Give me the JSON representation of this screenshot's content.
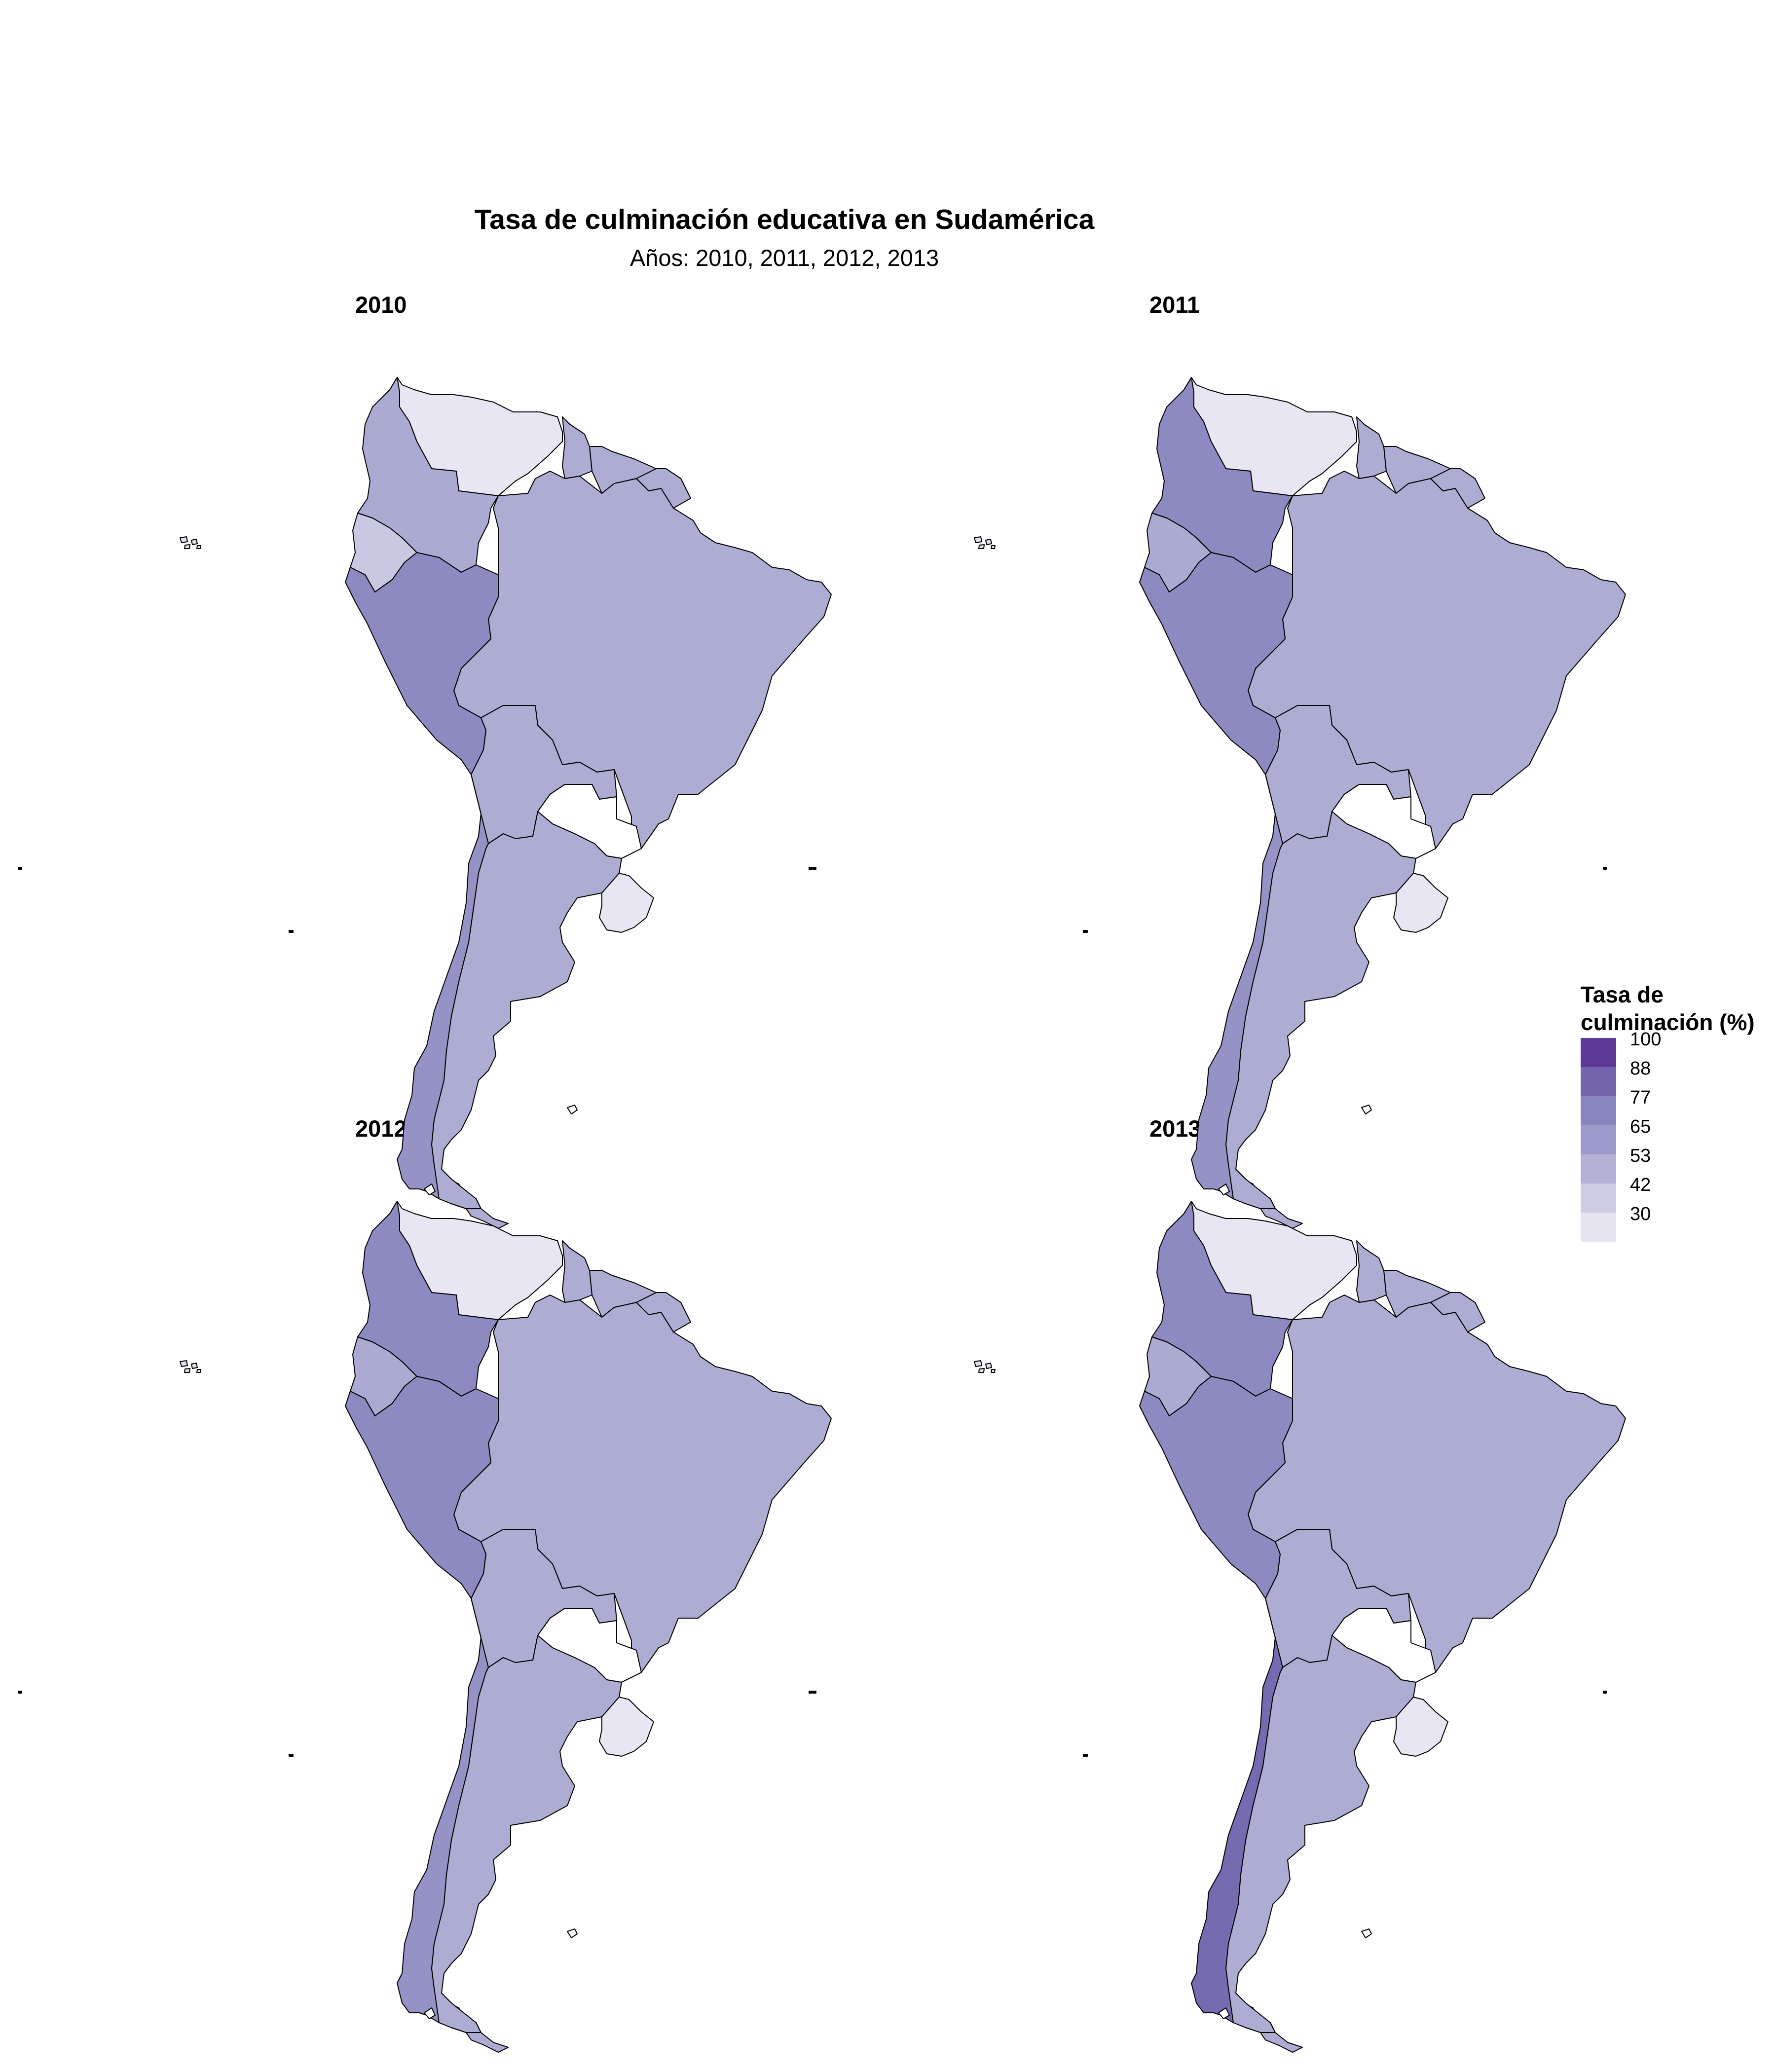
{
  "title": "Tasa de culminación educativa en Sudamérica",
  "subtitle": "Años: 2010, 2011, 2012, 2013",
  "panels": [
    {
      "year": "2010",
      "colors": {
        "colombia": "#abaad2",
        "venezuela": "#e7e6f2",
        "ecuador": "#c9c8e2",
        "peru": "#8d89c1",
        "brazil": "#adacd3",
        "bolivia": "#adacd3",
        "paraguay": "#ffffff",
        "chile": "#9593c6",
        "argentina": "#adacd3",
        "uruguay": "#e7e6f2",
        "guyanas": "#adacd3"
      }
    },
    {
      "year": "2011",
      "colors": {
        "colombia": "#8d89c1",
        "venezuela": "#e7e6f2",
        "ecuador": "#abaad2",
        "peru": "#8d89c1",
        "brazil": "#adacd3",
        "bolivia": "#adacd3",
        "paraguay": "#ffffff",
        "chile": "#9593c6",
        "argentina": "#adacd3",
        "uruguay": "#e7e6f2",
        "guyanas": "#adacd3"
      }
    },
    {
      "year": "2012",
      "colors": {
        "colombia": "#8d89c1",
        "venezuela": "#e7e6f2",
        "ecuador": "#abaad2",
        "peru": "#8d89c1",
        "brazil": "#adacd3",
        "bolivia": "#adacd3",
        "paraguay": "#ffffff",
        "chile": "#9593c6",
        "argentina": "#adacd3",
        "uruguay": "#e7e6f2",
        "guyanas": "#adacd3"
      }
    },
    {
      "year": "2013",
      "colors": {
        "colombia": "#8d89c1",
        "venezuela": "#e7e6f2",
        "ecuador": "#abaad2",
        "peru": "#8d89c1",
        "brazil": "#adacd3",
        "bolivia": "#adacd3",
        "paraguay": "#ffffff",
        "chile": "#756bb1",
        "argentina": "#adacd3",
        "uruguay": "#e7e6f2",
        "guyanas": "#adacd3"
      }
    }
  ],
  "legend": {
    "title": "Tasa de culminación (%)",
    "title_line1": "Tasa de",
    "title_line2": "culminación (%)",
    "labels": [
      "100",
      "88",
      "77",
      "65",
      "53",
      "42",
      "30"
    ],
    "colors": [
      "#5e3a98",
      "#7565ac",
      "#8985bf",
      "#9c9bcb",
      "#b3b1d6",
      "#cdcce4",
      "#e6e5f1"
    ]
  }
}
